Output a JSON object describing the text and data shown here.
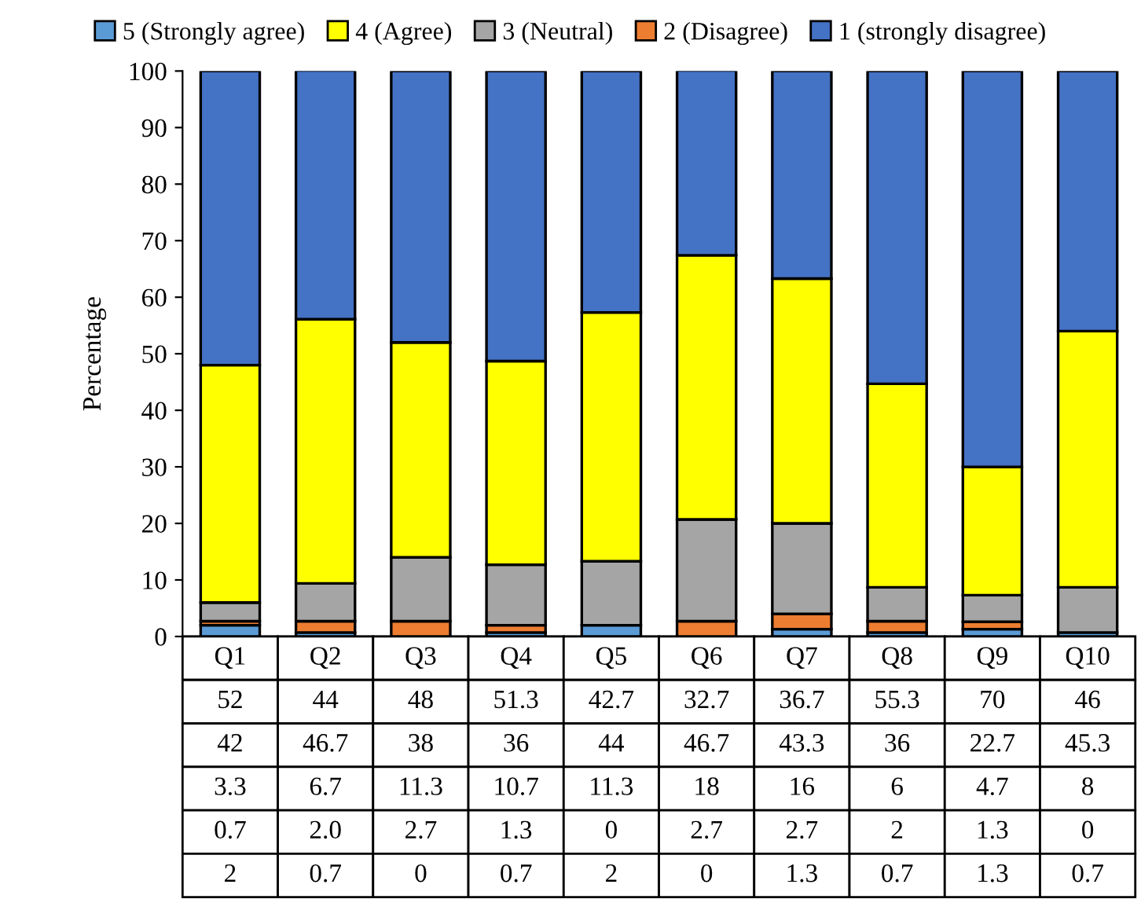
{
  "chart_data": {
    "type": "bar",
    "stacked": true,
    "ylabel": "Percentage",
    "categories": [
      "Q1",
      "Q2",
      "Q3",
      "Q4",
      "Q5",
      "Q6",
      "Q7",
      "Q8",
      "Q9",
      "Q10"
    ],
    "series": [
      {
        "name": "5 (Strongly agree)",
        "color": "#5b9bd5",
        "values": [
          2,
          0.7,
          0,
          0.7,
          2,
          0,
          1.3,
          0.7,
          1.3,
          0.7
        ]
      },
      {
        "name": "2 (Disagree)",
        "color": "#ed7d31",
        "values": [
          0.7,
          2.0,
          2.7,
          1.3,
          0,
          2.7,
          2.7,
          2,
          1.3,
          0
        ],
        "value_labels": [
          "0.7",
          "2.0",
          "2.7",
          "1.3",
          "0",
          "2.7",
          "2.7",
          "2",
          "1.3",
          "0"
        ]
      },
      {
        "name": "3 (Neutral)",
        "color": "#a5a5a5",
        "values": [
          3.3,
          6.7,
          11.3,
          10.7,
          11.3,
          18,
          16,
          6,
          4.7,
          8
        ]
      },
      {
        "name": "4 (Agree)",
        "color": "#ffff00",
        "values": [
          42,
          46.7,
          38,
          36,
          44,
          46.7,
          43.3,
          36,
          22.7,
          45.3
        ]
      },
      {
        "name": "1 (strongly disagree)",
        "color": "#4472c4",
        "values": [
          52,
          44,
          48,
          51.3,
          42.7,
          32.7,
          36.7,
          55.3,
          70,
          46
        ]
      }
    ],
    "ylim": [
      0,
      100
    ],
    "yticks": [
      0,
      10,
      20,
      30,
      40,
      50,
      60,
      70,
      80,
      90,
      100
    ],
    "grid": false,
    "legend": "top",
    "data_labels": true
  }
}
